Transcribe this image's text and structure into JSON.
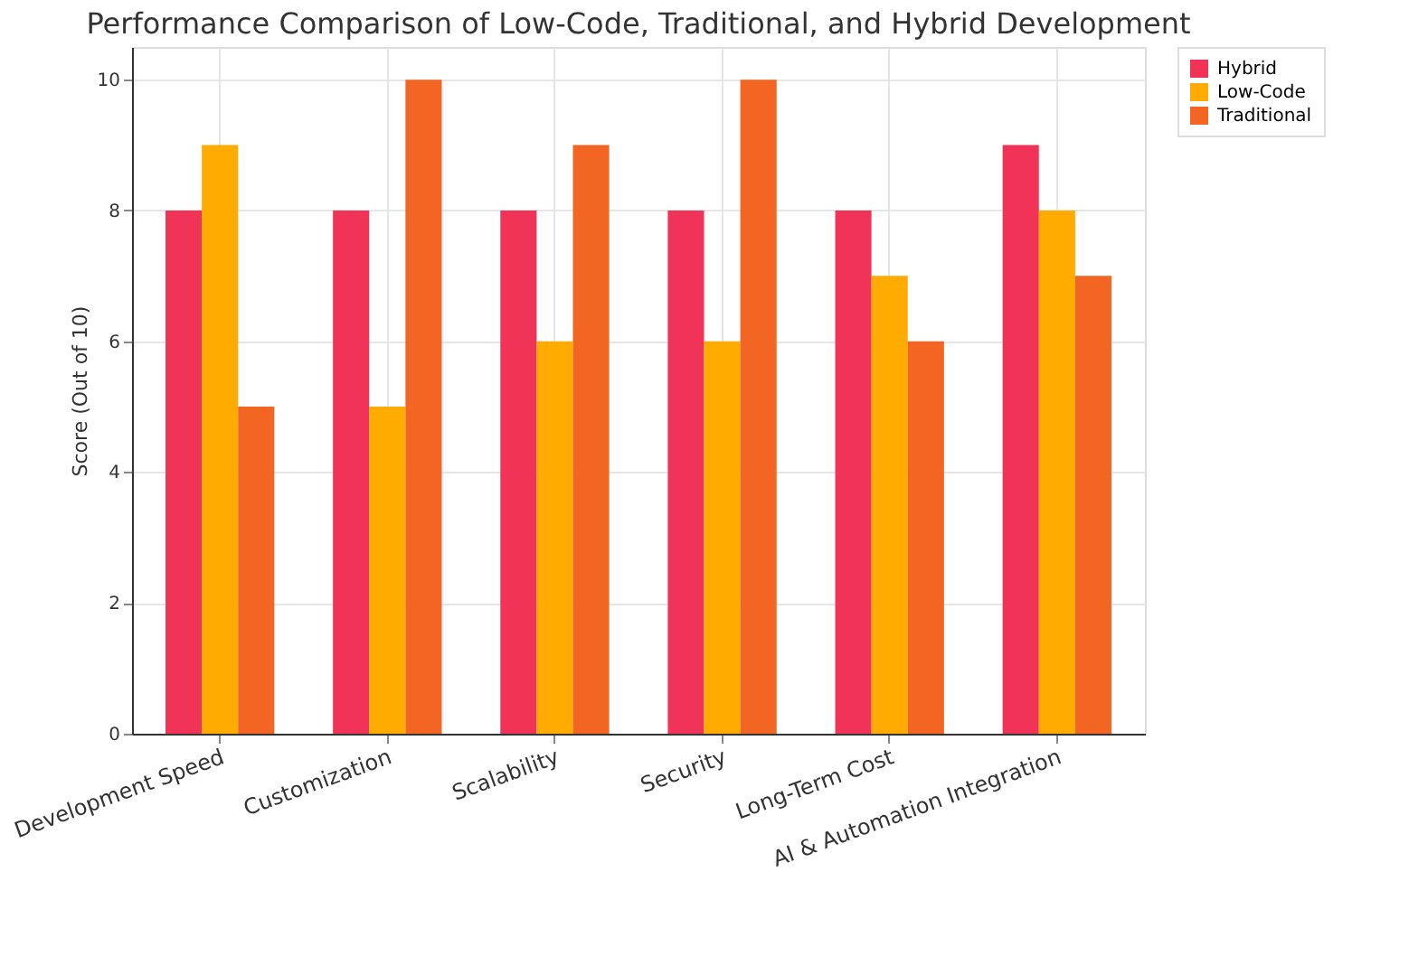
{
  "chart_data": {
    "type": "bar",
    "title": "Performance Comparison of Low-Code, Traditional, and Hybrid Development",
    "ylabel": "Score (Out of 10)",
    "categories": [
      "Development Speed",
      "Customization",
      "Scalability",
      "Security",
      "Long-Term Cost",
      "AI & Automation Integration"
    ],
    "series": [
      {
        "name": "Hybrid",
        "color": "#f23358",
        "values": [
          8,
          8,
          8,
          8,
          8,
          9
        ]
      },
      {
        "name": "Low-Code",
        "color": "#ffab00",
        "values": [
          9,
          5,
          6,
          6,
          7,
          8
        ]
      },
      {
        "name": "Traditional",
        "color": "#f26522",
        "values": [
          5,
          10,
          9,
          10,
          6,
          7
        ]
      }
    ],
    "ylim": [
      0,
      10.5
    ],
    "yticks": [
      0,
      2,
      4,
      6,
      8,
      10
    ],
    "grid": true,
    "legend": "right"
  }
}
